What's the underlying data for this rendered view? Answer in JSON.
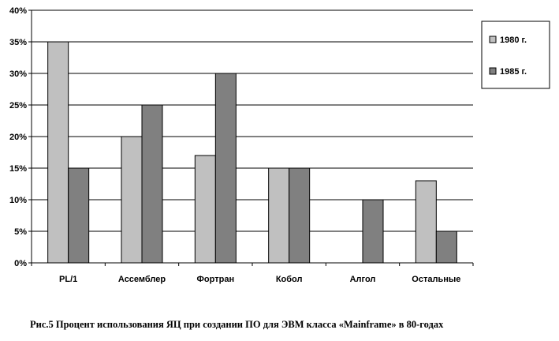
{
  "chart_data": {
    "type": "bar",
    "categories": [
      "PL/1",
      "Ассемблер",
      "Фортран",
      "Кобол",
      "Алгол",
      "Остальные"
    ],
    "series": [
      {
        "name": "1980 г.",
        "values": [
          35,
          20,
          17,
          15,
          0,
          13
        ],
        "color": "#c0c0c0"
      },
      {
        "name": "1985 г.",
        "values": [
          15,
          25,
          30,
          15,
          10,
          5
        ],
        "color": "#808080"
      }
    ],
    "ylim": [
      0,
      40
    ],
    "yticks": [
      0,
      5,
      10,
      15,
      20,
      25,
      30,
      35,
      40
    ],
    "ytick_format": "percent",
    "grid": true,
    "legend_position": "right"
  },
  "caption": "Рис.5   Процент использования ЯЦ при создании ПО для ЭВМ класса  «Mainframe» в 80-годах"
}
